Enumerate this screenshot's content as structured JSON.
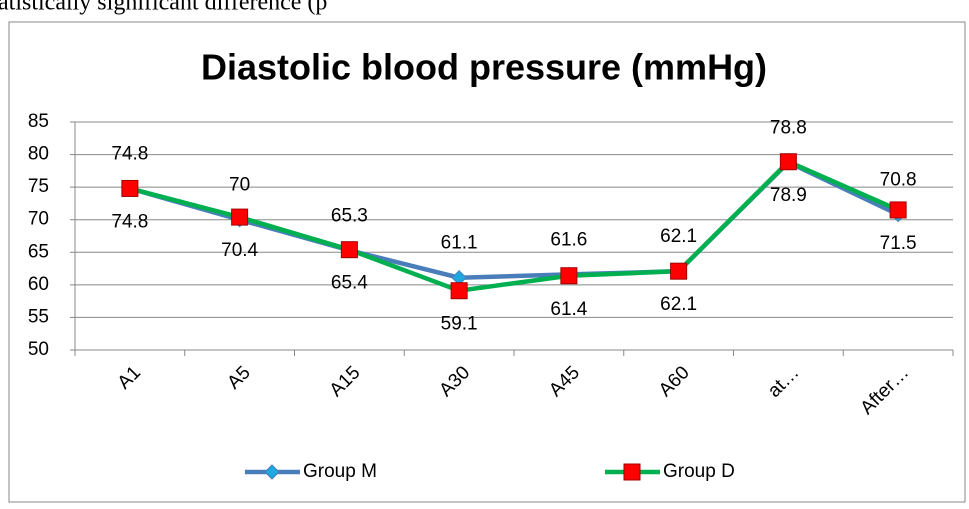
{
  "header_text": "atistically significant difference (p",
  "chart_data": {
    "type": "line",
    "title": "Diastolic blood pressure (mmHg)",
    "categories": [
      "A1",
      "A5",
      "A15",
      "A30",
      "A45",
      "A60",
      "at…",
      "After…"
    ],
    "series": [
      {
        "name": "Group M",
        "color": "#4a7ebb",
        "marker_color": "#1fa8e0",
        "values": [
          74.8,
          70,
          65.3,
          61.1,
          61.6,
          62.1,
          78.8,
          70.8
        ]
      },
      {
        "name": "Group D",
        "color": "#00b050",
        "marker_color": "#ff0000",
        "values": [
          74.8,
          70.4,
          65.4,
          59.1,
          61.4,
          62.1,
          78.9,
          71.5
        ]
      }
    ],
    "ylim": [
      50,
      85
    ],
    "yticks": [
      50,
      55,
      60,
      65,
      70,
      75,
      80,
      85
    ],
    "grid": true,
    "legend": "bottom"
  }
}
